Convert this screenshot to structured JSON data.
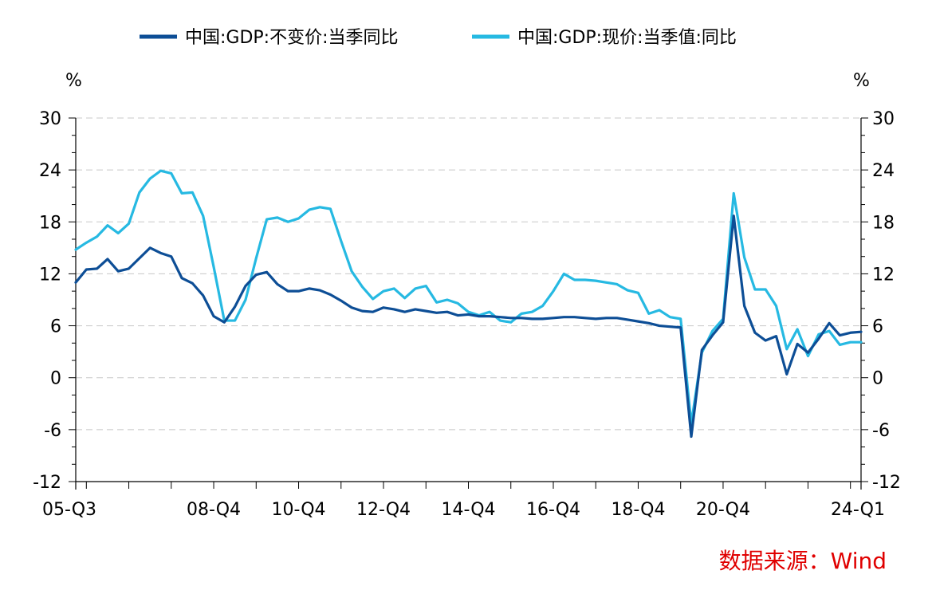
{
  "chart_data": {
    "type": "line",
    "title": "",
    "xlabel": "",
    "ylabel_left": "%",
    "ylabel_right": "%",
    "ylim": [
      -12,
      30
    ],
    "yticks": [
      -12,
      -6,
      0,
      6,
      12,
      18,
      24,
      30
    ],
    "grid": true,
    "legend_position": "top-center",
    "x_tick_labels": [
      "05-Q3",
      "08-Q4",
      "10-Q4",
      "12-Q4",
      "14-Q4",
      "16-Q4",
      "18-Q4",
      "20-Q4",
      "24-Q1"
    ],
    "x_tick_label_quarters": [
      "2005Q3",
      "2008Q4",
      "2010Q4",
      "2012Q4",
      "2014Q4",
      "2016Q4",
      "2018Q4",
      "2020Q4",
      "2024Q1"
    ],
    "x_range": [
      "2005Q3",
      "2024Q1"
    ],
    "series": [
      {
        "name": "中国:GDP:不变价:当季同比",
        "color": "#0d4e96",
        "points": [
          [
            "2005Q3",
            11.0
          ],
          [
            "2005Q4",
            12.5
          ],
          [
            "2006Q1",
            12.6
          ],
          [
            "2006Q2",
            13.7
          ],
          [
            "2006Q3",
            12.3
          ],
          [
            "2006Q4",
            12.6
          ],
          [
            "2007Q1",
            13.8
          ],
          [
            "2007Q2",
            15.0
          ],
          [
            "2007Q3",
            14.4
          ],
          [
            "2007Q4",
            14.0
          ],
          [
            "2008Q1",
            11.5
          ],
          [
            "2008Q2",
            10.9
          ],
          [
            "2008Q3",
            9.5
          ],
          [
            "2008Q4",
            7.1
          ],
          [
            "2009Q1",
            6.4
          ],
          [
            "2009Q2",
            8.2
          ],
          [
            "2009Q3",
            10.6
          ],
          [
            "2009Q4",
            11.9
          ],
          [
            "2010Q1",
            12.2
          ],
          [
            "2010Q2",
            10.8
          ],
          [
            "2010Q3",
            10.0
          ],
          [
            "2010Q4",
            10.0
          ],
          [
            "2011Q1",
            10.3
          ],
          [
            "2011Q2",
            10.1
          ],
          [
            "2011Q3",
            9.6
          ],
          [
            "2011Q4",
            8.9
          ],
          [
            "2012Q1",
            8.1
          ],
          [
            "2012Q2",
            7.7
          ],
          [
            "2012Q3",
            7.6
          ],
          [
            "2012Q4",
            8.1
          ],
          [
            "2013Q1",
            7.9
          ],
          [
            "2013Q2",
            7.6
          ],
          [
            "2013Q3",
            7.9
          ],
          [
            "2013Q4",
            7.7
          ],
          [
            "2014Q1",
            7.5
          ],
          [
            "2014Q2",
            7.6
          ],
          [
            "2014Q3",
            7.2
          ],
          [
            "2014Q4",
            7.3
          ],
          [
            "2015Q1",
            7.1
          ],
          [
            "2015Q2",
            7.1
          ],
          [
            "2015Q3",
            7.0
          ],
          [
            "2015Q4",
            6.9
          ],
          [
            "2016Q1",
            6.9
          ],
          [
            "2016Q2",
            6.8
          ],
          [
            "2016Q3",
            6.8
          ],
          [
            "2016Q4",
            6.9
          ],
          [
            "2017Q1",
            7.0
          ],
          [
            "2017Q2",
            7.0
          ],
          [
            "2017Q3",
            6.9
          ],
          [
            "2017Q4",
            6.8
          ],
          [
            "2018Q1",
            6.9
          ],
          [
            "2018Q2",
            6.9
          ],
          [
            "2018Q3",
            6.7
          ],
          [
            "2018Q4",
            6.5
          ],
          [
            "2019Q1",
            6.3
          ],
          [
            "2019Q2",
            6.0
          ],
          [
            "2019Q3",
            5.9
          ],
          [
            "2019Q4",
            5.8
          ],
          [
            "2020Q1",
            -6.8
          ],
          [
            "2020Q2",
            3.2
          ],
          [
            "2020Q3",
            4.9
          ],
          [
            "2020Q4",
            6.4
          ],
          [
            "2021Q1",
            18.7
          ],
          [
            "2021Q2",
            8.3
          ],
          [
            "2021Q3",
            5.2
          ],
          [
            "2021Q4",
            4.3
          ],
          [
            "2022Q1",
            4.8
          ],
          [
            "2022Q2",
            0.4
          ],
          [
            "2022Q3",
            3.9
          ],
          [
            "2022Q4",
            2.9
          ],
          [
            "2023Q1",
            4.5
          ],
          [
            "2023Q2",
            6.3
          ],
          [
            "2023Q3",
            4.9
          ],
          [
            "2023Q4",
            5.2
          ],
          [
            "2024Q1",
            5.3
          ]
        ]
      },
      {
        "name": "中国:GDP:现价:当季值:同比",
        "color": "#26b9e2",
        "points": [
          [
            "2005Q3",
            14.8
          ],
          [
            "2005Q4",
            15.6
          ],
          [
            "2006Q1",
            16.3
          ],
          [
            "2006Q2",
            17.6
          ],
          [
            "2006Q3",
            16.7
          ],
          [
            "2006Q4",
            17.8
          ],
          [
            "2007Q1",
            21.4
          ],
          [
            "2007Q2",
            23.0
          ],
          [
            "2007Q3",
            23.9
          ],
          [
            "2007Q4",
            23.6
          ],
          [
            "2008Q1",
            21.3
          ],
          [
            "2008Q2",
            21.4
          ],
          [
            "2008Q3",
            18.7
          ],
          [
            "2008Q4",
            12.8
          ],
          [
            "2009Q1",
            6.6
          ],
          [
            "2009Q2",
            6.6
          ],
          [
            "2009Q3",
            9.0
          ],
          [
            "2009Q4",
            13.8
          ],
          [
            "2010Q1",
            18.3
          ],
          [
            "2010Q2",
            18.5
          ],
          [
            "2010Q3",
            18.0
          ],
          [
            "2010Q4",
            18.4
          ],
          [
            "2011Q1",
            19.4
          ],
          [
            "2011Q2",
            19.7
          ],
          [
            "2011Q3",
            19.5
          ],
          [
            "2011Q4",
            15.8
          ],
          [
            "2012Q1",
            12.3
          ],
          [
            "2012Q2",
            10.5
          ],
          [
            "2012Q3",
            9.1
          ],
          [
            "2012Q4",
            10.0
          ],
          [
            "2013Q1",
            10.3
          ],
          [
            "2013Q2",
            9.2
          ],
          [
            "2013Q3",
            10.3
          ],
          [
            "2013Q4",
            10.6
          ],
          [
            "2014Q1",
            8.7
          ],
          [
            "2014Q2",
            9.0
          ],
          [
            "2014Q3",
            8.6
          ],
          [
            "2014Q4",
            7.6
          ],
          [
            "2015Q1",
            7.2
          ],
          [
            "2015Q2",
            7.6
          ],
          [
            "2015Q3",
            6.6
          ],
          [
            "2015Q4",
            6.4
          ],
          [
            "2016Q1",
            7.4
          ],
          [
            "2016Q2",
            7.6
          ],
          [
            "2016Q3",
            8.3
          ],
          [
            "2016Q4",
            10.0
          ],
          [
            "2017Q1",
            12.0
          ],
          [
            "2017Q2",
            11.3
          ],
          [
            "2017Q3",
            11.3
          ],
          [
            "2017Q4",
            11.2
          ],
          [
            "2018Q1",
            11.0
          ],
          [
            "2018Q2",
            10.8
          ],
          [
            "2018Q3",
            10.1
          ],
          [
            "2018Q4",
            9.8
          ],
          [
            "2019Q1",
            7.4
          ],
          [
            "2019Q2",
            7.8
          ],
          [
            "2019Q3",
            7.0
          ],
          [
            "2019Q4",
            6.8
          ],
          [
            "2020Q1",
            -5.3
          ],
          [
            "2020Q2",
            2.9
          ],
          [
            "2020Q3",
            5.4
          ],
          [
            "2020Q4",
            6.8
          ],
          [
            "2021Q1",
            21.3
          ],
          [
            "2021Q2",
            13.9
          ],
          [
            "2021Q3",
            10.2
          ],
          [
            "2021Q4",
            10.2
          ],
          [
            "2022Q1",
            8.3
          ],
          [
            "2022Q2",
            3.3
          ],
          [
            "2022Q3",
            5.6
          ],
          [
            "2022Q4",
            2.5
          ],
          [
            "2023Q1",
            5.0
          ],
          [
            "2023Q2",
            5.4
          ],
          [
            "2023Q3",
            3.8
          ],
          [
            "2023Q4",
            4.1
          ],
          [
            "2024Q1",
            4.1
          ]
        ]
      }
    ]
  },
  "source_note": "数据来源：Wind",
  "colors": {
    "source_text": "#e00000",
    "axis": "#000000",
    "grid": "#c8c8c8"
  }
}
